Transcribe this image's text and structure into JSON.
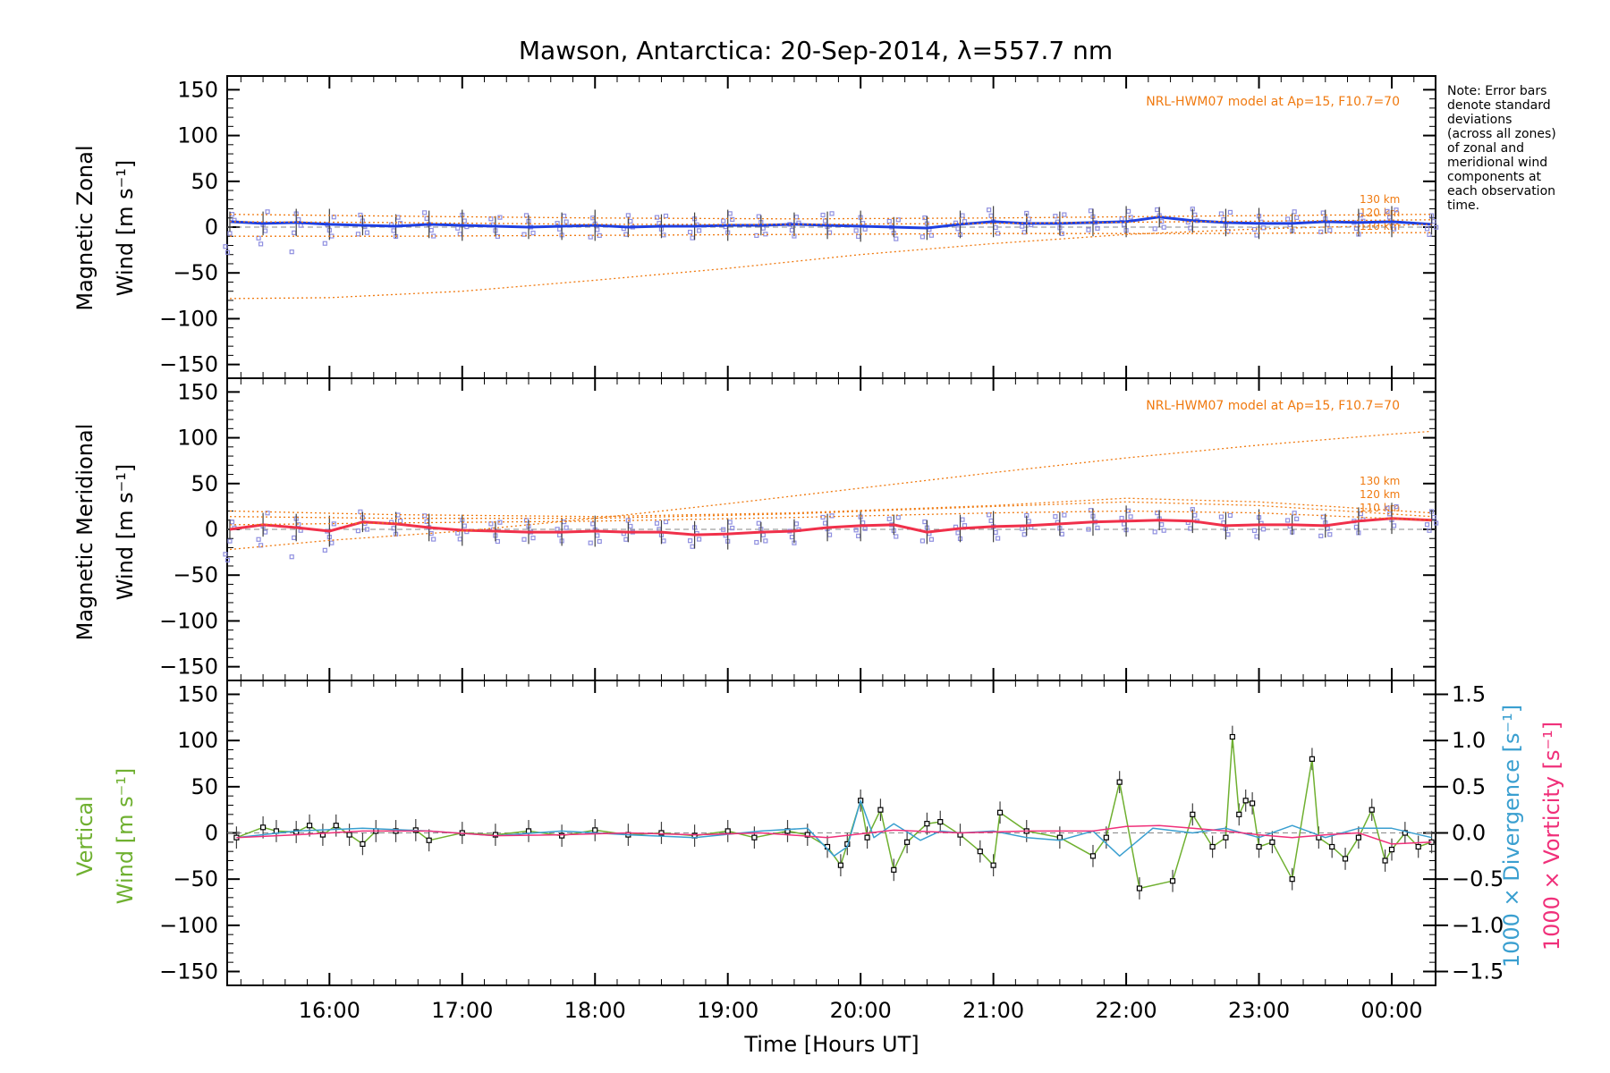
{
  "title": "Mawson, Antarctica: 20-Sep-2014, λ=557.7 nm",
  "note_lines": [
    "Note: Error bars",
    "denote standard",
    "deviations",
    "(across all zones)",
    "of zonal and",
    "meridional wind",
    "components at",
    "each observation",
    "time."
  ],
  "colors": {
    "zonal": "#1f3fe0",
    "meridional": "#f0304a",
    "vertical": "#6fb030",
    "divergence": "#3a9fd0",
    "vorticity": "#f0307a",
    "model": "#f07a10",
    "zone_points": "#9090e0",
    "error_bars": "#404040"
  },
  "x_axis": {
    "label": "Time [Hours UT]",
    "ticks": [
      "16:00",
      "17:00",
      "18:00",
      "19:00",
      "20:00",
      "21:00",
      "22:00",
      "23:00",
      "00:00"
    ]
  },
  "panels": [
    {
      "id": "zonal",
      "ylabel_line1": "Magnetic Zonal",
      "ylabel_line2": "Wind [m s⁻¹]",
      "model_label": "NRL-HWM07 model at Ap=15, F10.7=70",
      "height_labels": [
        "130 km",
        "120 km",
        "110 km"
      ]
    },
    {
      "id": "meridional",
      "ylabel_line1": "Magnetic Meridional",
      "ylabel_line2": "Wind [m s⁻¹]",
      "model_label": "NRL-HWM07 model at Ap=15, F10.7=70",
      "height_labels": [
        "130 km",
        "120 km",
        "110 km"
      ]
    },
    {
      "id": "vertical",
      "ylabel_line1": "Vertical",
      "ylabel_line2": "Wind [m s⁻¹]",
      "right_label_1": "1000 × Divergence [s⁻¹]",
      "right_label_2": "1000 × Vorticity [s⁻¹]"
    }
  ],
  "y_ticks_left": [
    "150",
    "100",
    "50",
    "0",
    "−50",
    "−100",
    "−150"
  ],
  "y_ticks_right": [
    "1.5",
    "1.0",
    "0.5",
    "0.0",
    "−0.5",
    "−1.0",
    "−1.5"
  ],
  "chart_data": [
    {
      "type": "line",
      "panel": "zonal",
      "xlim": [
        15.23,
        24.33
      ],
      "ylim": [
        -165,
        165
      ],
      "series": [
        {
          "name": "zonal",
          "x": [
            15.25,
            15.5,
            15.75,
            16.0,
            16.25,
            16.5,
            16.75,
            17.0,
            17.25,
            17.5,
            17.75,
            18.0,
            18.25,
            18.5,
            18.75,
            19.0,
            19.25,
            19.5,
            19.75,
            20.0,
            20.25,
            20.5,
            20.75,
            21.0,
            21.25,
            21.5,
            21.75,
            22.0,
            22.25,
            22.5,
            22.75,
            23.0,
            23.25,
            23.5,
            23.75,
            24.0,
            24.3
          ],
          "y": [
            6,
            4,
            5,
            3,
            2,
            1,
            3,
            2,
            1,
            0,
            1,
            2,
            0,
            1,
            1,
            2,
            2,
            3,
            2,
            1,
            0,
            -1,
            3,
            6,
            4,
            4,
            5,
            6,
            11,
            7,
            5,
            4,
            4,
            6,
            5,
            6,
            3
          ]
        },
        {
          "name": "model 130 km",
          "x": [
            15.25,
            16.5,
            18.0,
            19.5,
            21.0,
            22.5,
            24.3
          ],
          "y": [
            14,
            12,
            10,
            9,
            10,
            12,
            14
          ]
        },
        {
          "name": "model 120 km",
          "x": [
            15.25,
            16.5,
            18.0,
            19.5,
            21.0,
            22.5,
            24.3
          ],
          "y": [
            6,
            5,
            3,
            3,
            4,
            6,
            8
          ]
        },
        {
          "name": "model 110 km",
          "x": [
            15.25,
            16.5,
            18.0,
            19.5,
            21.0,
            22.5,
            24.3
          ],
          "y": [
            -10,
            -10,
            -9,
            -8,
            -7,
            -7,
            -6
          ]
        },
        {
          "name": "model",
          "x": [
            15.25,
            16.0,
            17.0,
            18.0,
            19.0,
            20.0,
            21.0,
            22.0,
            23.0,
            24.0,
            24.3
          ],
          "y": [
            -78,
            -77,
            -70,
            -58,
            -45,
            -30,
            -18,
            -8,
            -2,
            2,
            3
          ]
        }
      ]
    },
    {
      "type": "line",
      "panel": "meridional",
      "xlim": [
        15.23,
        24.33
      ],
      "ylim": [
        -165,
        165
      ],
      "series": [
        {
          "name": "meridional",
          "x": [
            15.25,
            15.5,
            15.75,
            16.0,
            16.25,
            16.5,
            16.75,
            17.0,
            17.25,
            17.5,
            17.75,
            18.0,
            18.25,
            18.5,
            18.75,
            19.0,
            19.25,
            19.5,
            19.75,
            20.0,
            20.25,
            20.5,
            20.75,
            21.0,
            21.25,
            21.5,
            21.75,
            22.0,
            22.25,
            22.5,
            22.75,
            23.0,
            23.25,
            23.5,
            23.75,
            24.0,
            24.3
          ],
          "y": [
            0,
            5,
            2,
            -2,
            8,
            6,
            2,
            -1,
            -2,
            -3,
            -3,
            -2,
            -3,
            -3,
            -6,
            -5,
            -3,
            -2,
            2,
            4,
            5,
            -3,
            1,
            3,
            4,
            6,
            8,
            9,
            10,
            9,
            4,
            5,
            5,
            4,
            9,
            12,
            10
          ]
        },
        {
          "name": "model 130 km",
          "x": [
            15.25,
            16.5,
            18.0,
            19.5,
            21.0,
            22.0,
            23.0,
            24.3
          ],
          "y": [
            20,
            16,
            14,
            18,
            26,
            34,
            30,
            18
          ]
        },
        {
          "name": "model 120 km",
          "x": [
            15.25,
            16.5,
            18.0,
            19.5,
            21.0,
            22.0,
            23.0,
            24.3
          ],
          "y": [
            14,
            12,
            12,
            17,
            25,
            30,
            26,
            14
          ]
        },
        {
          "name": "model 110 km",
          "x": [
            15.25,
            16.5,
            18.0,
            19.5,
            21.0,
            22.0,
            23.0,
            24.3
          ],
          "y": [
            5,
            7,
            9,
            13,
            18,
            20,
            18,
            10
          ]
        },
        {
          "name": "model",
          "x": [
            15.25,
            16.0,
            17.0,
            18.0,
            19.0,
            20.0,
            21.0,
            22.0,
            23.0,
            24.0,
            24.3
          ],
          "y": [
            -22,
            -12,
            -2,
            12,
            28,
            45,
            62,
            78,
            92,
            104,
            107
          ]
        }
      ]
    },
    {
      "type": "line",
      "panel": "vertical",
      "xlim": [
        15.23,
        24.33
      ],
      "ylim": [
        -165,
        165
      ],
      "y2lim": [
        -1.65,
        1.65
      ],
      "series": [
        {
          "name": "vertical",
          "x": [
            15.3,
            15.5,
            15.6,
            15.75,
            15.85,
            15.95,
            16.05,
            16.15,
            16.25,
            16.35,
            16.5,
            16.65,
            16.75,
            17.0,
            17.25,
            17.5,
            17.75,
            18.0,
            18.25,
            18.5,
            18.75,
            19.0,
            19.2,
            19.45,
            19.6,
            19.75,
            19.85,
            19.9,
            20.0,
            20.05,
            20.15,
            20.25,
            20.35,
            20.5,
            20.6,
            20.75,
            20.9,
            21.0,
            21.05,
            21.25,
            21.5,
            21.75,
            21.85,
            21.95,
            22.1,
            22.35,
            22.5,
            22.65,
            22.75,
            22.8,
            22.85,
            22.9,
            22.95,
            23.0,
            23.1,
            23.25,
            23.4,
            23.45,
            23.55,
            23.65,
            23.75,
            23.85,
            23.95,
            24.0,
            24.1,
            24.2,
            24.3
          ],
          "y": [
            -5,
            6,
            2,
            1,
            8,
            -2,
            8,
            -2,
            -12,
            2,
            2,
            3,
            -8,
            0,
            -2,
            2,
            -3,
            3,
            -2,
            0,
            -3,
            2,
            -5,
            2,
            -2,
            -15,
            -35,
            -12,
            35,
            -5,
            25,
            -40,
            -10,
            10,
            12,
            -2,
            -20,
            -35,
            22,
            2,
            -5,
            -25,
            -5,
            55,
            -60,
            -52,
            20,
            -15,
            -5,
            104,
            20,
            35,
            32,
            -15,
            -10,
            -50,
            80,
            -5,
            -15,
            -28,
            -5,
            25,
            -30,
            -18,
            0,
            -15,
            -10
          ]
        },
        {
          "name": "1000 × Divergence",
          "x": [
            15.3,
            15.75,
            16.25,
            16.75,
            17.25,
            17.75,
            18.25,
            18.75,
            19.25,
            19.6,
            19.8,
            19.9,
            20.0,
            20.1,
            20.25,
            20.45,
            20.6,
            20.75,
            21.0,
            21.25,
            21.5,
            21.75,
            21.95,
            22.2,
            22.5,
            22.75,
            23.0,
            23.25,
            23.5,
            23.75,
            24.0,
            24.3
          ],
          "y": [
            -0.05,
            0.02,
            0.05,
            0.02,
            -0.03,
            0.02,
            -0.02,
            -0.05,
            0.02,
            0.05,
            -0.25,
            -0.15,
            0.35,
            -0.05,
            0.1,
            -0.08,
            0.02,
            0.0,
            0.02,
            -0.05,
            -0.08,
            0.02,
            -0.25,
            0.05,
            0.0,
            0.05,
            -0.05,
            0.08,
            -0.05,
            0.05,
            0.05,
            -0.05
          ]
        },
        {
          "name": "1000 × Vorticity",
          "x": [
            15.3,
            15.75,
            16.25,
            16.75,
            17.25,
            17.75,
            18.25,
            18.75,
            19.25,
            19.75,
            20.25,
            20.75,
            21.25,
            21.75,
            22.0,
            22.25,
            22.5,
            22.75,
            23.0,
            23.25,
            23.5,
            23.75,
            24.0,
            24.3
          ],
          "y": [
            -0.05,
            -0.02,
            0.02,
            0.02,
            -0.03,
            -0.02,
            0.0,
            -0.02,
            0.0,
            -0.05,
            0.03,
            0.0,
            0.02,
            0.02,
            0.07,
            0.08,
            0.05,
            0.02,
            -0.02,
            -0.05,
            -0.02,
            0.0,
            -0.12,
            -0.1
          ]
        }
      ]
    }
  ]
}
